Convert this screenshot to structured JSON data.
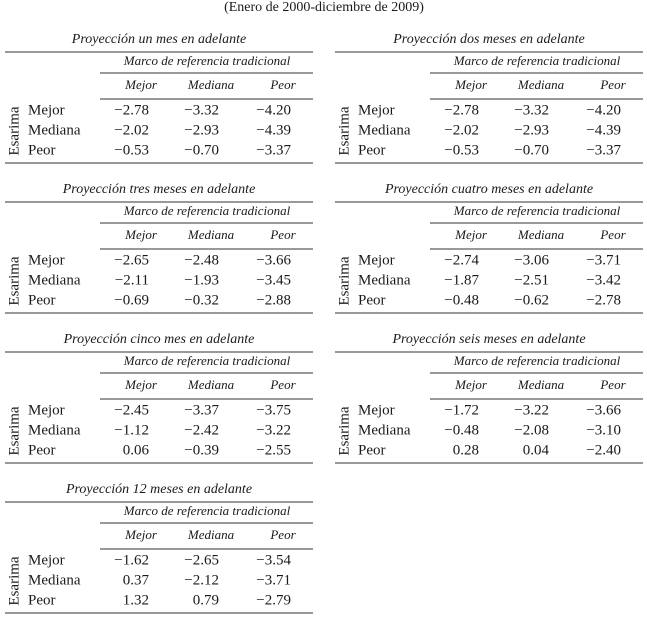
{
  "subtitle": "(Enero de 2000-diciembre de 2009)",
  "panels": [
    {
      "title": "Proyección un mes en adelante",
      "group_header": "Marco de referencia tradicional",
      "columns": [
        "Mejor",
        "Mediana",
        "Peor"
      ],
      "row_group": "Esarima",
      "rows": [
        {
          "label": "Mejor",
          "values": [
            "−2.78",
            "−3.32",
            "−4.20"
          ]
        },
        {
          "label": "Mediana",
          "values": [
            "−2.02",
            "−2.93",
            "−4.39"
          ]
        },
        {
          "label": "Peor",
          "values": [
            "−0.53",
            "−0.70",
            "−3.37"
          ]
        }
      ]
    },
    {
      "title": "Proyección dos meses en adelante",
      "group_header": "Marco de referencia tradicional",
      "columns": [
        "Mejor",
        "Mediana",
        "Peor"
      ],
      "row_group": "Esarima",
      "rows": [
        {
          "label": "Mejor",
          "values": [
            "−2.78",
            "−3.32",
            "−4.20"
          ]
        },
        {
          "label": "Mediana",
          "values": [
            "−2.02",
            "−2.93",
            "−4.39"
          ]
        },
        {
          "label": "Peor",
          "values": [
            "−0.53",
            "−0.70",
            "−3.37"
          ]
        }
      ]
    },
    {
      "title": "Proyección tres meses en adelante",
      "group_header": "Marco de referencia tradicional",
      "columns": [
        "Mejor",
        "Mediana",
        "Peor"
      ],
      "row_group": "Esarima",
      "rows": [
        {
          "label": "Mejor",
          "values": [
            "−2.65",
            "−2.48",
            "−3.66"
          ]
        },
        {
          "label": "Mediana",
          "values": [
            "−2.11",
            "−1.93",
            "−3.45"
          ]
        },
        {
          "label": "Peor",
          "values": [
            "−0.69",
            "−0.32",
            "−2.88"
          ]
        }
      ]
    },
    {
      "title": "Proyección cuatro meses en adelante",
      "group_header": "Marco de referencia tradicional",
      "columns": [
        "Mejor",
        "Mediana",
        "Peor"
      ],
      "row_group": "Esarima",
      "rows": [
        {
          "label": "Mejor",
          "values": [
            "−2.74",
            "−3.06",
            "−3.71"
          ]
        },
        {
          "label": "Mediana",
          "values": [
            "−1.87",
            "−2.51",
            "−3.42"
          ]
        },
        {
          "label": "Peor",
          "values": [
            "−0.48",
            "−0.62",
            "−2.78"
          ]
        }
      ]
    },
    {
      "title": "Proyección cinco mes en adelante",
      "group_header": "Marco de referencia tradicional",
      "columns": [
        "Mejor",
        "Mediana",
        "Peor"
      ],
      "row_group": "Esarima",
      "rows": [
        {
          "label": "Mejor",
          "values": [
            "−2.45",
            "−3.37",
            "−3.75"
          ]
        },
        {
          "label": "Mediana",
          "values": [
            "−1.12",
            "−2.42",
            "−3.22"
          ]
        },
        {
          "label": "Peor",
          "values": [
            "0.06",
            "−0.39",
            "−2.55"
          ]
        }
      ]
    },
    {
      "title": "Proyección seis meses en adelante",
      "group_header": "Marco de referencia tradicional",
      "columns": [
        "Mejor",
        "Mediana",
        "Peor"
      ],
      "row_group": "Esarima",
      "rows": [
        {
          "label": "Mejor",
          "values": [
            "−1.72",
            "−3.22",
            "−3.66"
          ]
        },
        {
          "label": "Mediana",
          "values": [
            "−0.48",
            "−2.08",
            "−3.10"
          ]
        },
        {
          "label": "Peor",
          "values": [
            "0.28",
            "0.04",
            "−2.40"
          ]
        }
      ]
    },
    {
      "title": "Proyección 12 meses en adelante",
      "group_header": "Marco de referencia tradicional",
      "columns": [
        "Mejor",
        "Mediana",
        "Peor"
      ],
      "row_group": "Esarima",
      "rows": [
        {
          "label": "Mejor",
          "values": [
            "−1.62",
            "−2.65",
            "−3.54"
          ]
        },
        {
          "label": "Mediana",
          "values": [
            "0.37",
            "−2.12",
            "−3.71"
          ]
        },
        {
          "label": "Peor",
          "values": [
            "1.32",
            "0.79",
            "−2.79"
          ]
        }
      ]
    }
  ]
}
